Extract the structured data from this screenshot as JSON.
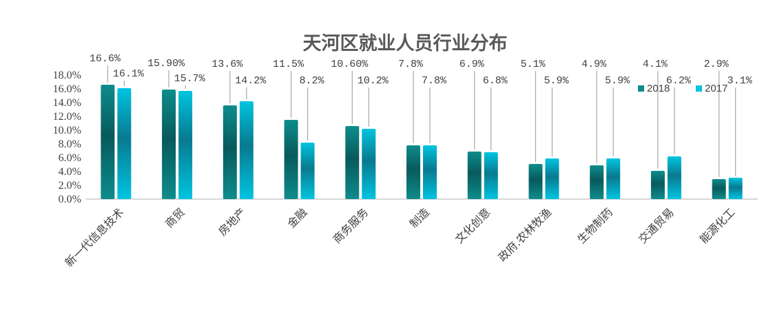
{
  "chart_data": {
    "type": "bar",
    "title": "天河区就业人员行业分布",
    "categories": [
      "新一代信息技术",
      "商贸",
      "房地产",
      "金融",
      "商务服务",
      "制造",
      "文化创意",
      "政府.农林牧渔",
      "生物制药",
      "交通贸易",
      "能源化工"
    ],
    "series": [
      {
        "name": "2018",
        "values": [
          16.6,
          15.9,
          13.6,
          11.5,
          10.6,
          7.8,
          6.9,
          5.1,
          4.9,
          4.1,
          2.9
        ],
        "labels": [
          "16.6%",
          "15.90%",
          "13.6%",
          "11.5%",
          "10.60%",
          "7.8%",
          "6.9%",
          "5.1%",
          "4.9%",
          "4.1%",
          "2.9%"
        ],
        "color": "#0E8C8C",
        "color_mid": "#075A5C"
      },
      {
        "name": "2017",
        "values": [
          16.1,
          15.7,
          14.2,
          8.2,
          10.2,
          7.8,
          6.8,
          5.9,
          5.9,
          6.2,
          3.1
        ],
        "labels": [
          "16.1%",
          "15.7%",
          "14.2%",
          "8.2%",
          "10.2%",
          "7.8%",
          "6.8%",
          "5.9%",
          "5.9%",
          "6.2%",
          "3.1%"
        ],
        "color": "#00C4E0",
        "color_mid": "#087A90"
      }
    ],
    "ylim": [
      0,
      18
    ],
    "yticks": [
      "0.0%",
      "2.0%",
      "4.0%",
      "6.0%",
      "8.0%",
      "10.0%",
      "12.0%",
      "14.0%",
      "16.0%",
      "18.0%"
    ],
    "legend_position": "top-right",
    "grid": false
  }
}
